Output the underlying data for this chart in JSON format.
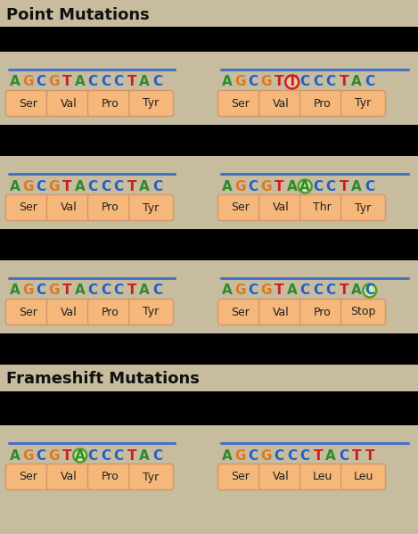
{
  "bg_tan": "#c8bc9e",
  "bg_black": "#000000",
  "title1": "Point Mutations",
  "title2": "Frameshift Mutations",
  "dna_line_color": "#4472c4",
  "amino_box_facecolor": "#f5b87a",
  "amino_box_edgecolor": "#d4956a",
  "letter_colors": {
    "A": "#2d8b2d",
    "G": "#e07820",
    "C": "#2060cc",
    "T": "#cc2020"
  },
  "rows": [
    {
      "left": {
        "seq": [
          "A",
          "G",
          "C",
          "G",
          "T",
          "A",
          "C",
          "C",
          "C",
          "T",
          "A",
          "C"
        ],
        "highlight": null,
        "highlight_type": null,
        "aminos": [
          "Ser",
          "Val",
          "Pro",
          "Tyr"
        ]
      },
      "right": {
        "seq": [
          "A",
          "G",
          "C",
          "G",
          "T",
          "T",
          "C",
          "C",
          "C",
          "T",
          "A",
          "C"
        ],
        "highlight": 5,
        "highlight_type": "red_circle",
        "aminos": [
          "Ser",
          "Val",
          "Pro",
          "Tyr"
        ]
      }
    },
    {
      "left": {
        "seq": [
          "A",
          "G",
          "C",
          "G",
          "T",
          "A",
          "C",
          "C",
          "C",
          "T",
          "A",
          "C"
        ],
        "highlight": null,
        "highlight_type": null,
        "aminos": [
          "Ser",
          "Val",
          "Pro",
          "Tyr"
        ]
      },
      "right": {
        "seq": [
          "A",
          "G",
          "C",
          "G",
          "T",
          "A",
          "A",
          "C",
          "C",
          "T",
          "A",
          "C"
        ],
        "highlight": 6,
        "highlight_type": "green_circle",
        "aminos": [
          "Ser",
          "Val",
          "Thr",
          "Tyr"
        ]
      }
    },
    {
      "left": {
        "seq": [
          "A",
          "G",
          "C",
          "G",
          "T",
          "A",
          "C",
          "C",
          "C",
          "T",
          "A",
          "C"
        ],
        "highlight": null,
        "highlight_type": null,
        "aminos": [
          "Ser",
          "Val",
          "Pro",
          "Tyr"
        ]
      },
      "right": {
        "seq": [
          "A",
          "G",
          "C",
          "G",
          "T",
          "A",
          "C",
          "C",
          "C",
          "T",
          "A",
          "C"
        ],
        "highlight": 11,
        "highlight_type": "green_circle",
        "aminos": [
          "Ser",
          "Val",
          "Pro",
          "Stop"
        ]
      }
    }
  ],
  "frameshift_rows": [
    {
      "left": {
        "seq": [
          "A",
          "G",
          "C",
          "G",
          "T",
          "A",
          "C",
          "C",
          "C",
          "T",
          "A",
          "C"
        ],
        "highlight": 5,
        "highlight_type": "green_circle",
        "aminos": [
          "Ser",
          "Val",
          "Pro",
          "Tyr"
        ]
      },
      "right": {
        "seq": [
          "A",
          "G",
          "C",
          "G",
          "C",
          "C",
          "C",
          "T",
          "A",
          "C",
          "T",
          "T"
        ],
        "highlight": null,
        "highlight_type": null,
        "aminos": [
          "Ser",
          "Val",
          "Leu",
          "Leu"
        ]
      }
    }
  ],
  "fig_w": 4.69,
  "fig_h": 5.99,
  "dpi": 100
}
